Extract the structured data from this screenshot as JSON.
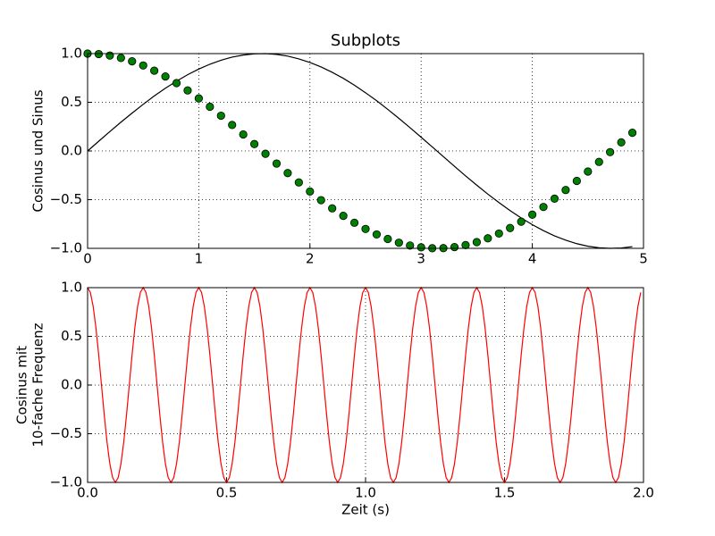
{
  "chart_data": [
    {
      "type": "line",
      "title": "Subplots",
      "ylabel": [
        "Cosinus und Sinus"
      ],
      "x": [
        0,
        0.1,
        0.2,
        0.3,
        0.4,
        0.5,
        0.6,
        0.7,
        0.8,
        0.9,
        1.0,
        1.1,
        1.2,
        1.3,
        1.4,
        1.5,
        1.6,
        1.7,
        1.8,
        1.9,
        2.0,
        2.1,
        2.2,
        2.3,
        2.4,
        2.5,
        2.6,
        2.7,
        2.8,
        2.9,
        3.0,
        3.1,
        3.2,
        3.3,
        3.4,
        3.5,
        3.6,
        3.7,
        3.8,
        3.9,
        4.0,
        4.1,
        4.2,
        4.3,
        4.4,
        4.5,
        4.6,
        4.7,
        4.8,
        4.9
      ],
      "series": [
        {
          "color": "#000000",
          "style": "line",
          "values": [
            0,
            0.0998,
            0.199,
            0.296,
            0.389,
            0.479,
            0.565,
            0.644,
            0.717,
            0.783,
            0.841,
            0.891,
            0.932,
            0.964,
            0.985,
            0.997,
            1.0,
            0.992,
            0.974,
            0.946,
            0.909,
            0.863,
            0.808,
            0.746,
            0.675,
            0.598,
            0.516,
            0.427,
            0.335,
            0.239,
            0.141,
            0.042,
            -0.058,
            -0.158,
            -0.256,
            -0.351,
            -0.443,
            -0.53,
            -0.612,
            -0.688,
            -0.757,
            -0.818,
            -0.872,
            -0.916,
            -0.952,
            -0.978,
            -0.994,
            -1.0,
            -0.996,
            -0.982
          ]
        },
        {
          "color": "#008000",
          "style": "marker",
          "values": [
            1,
            0.995,
            0.98,
            0.955,
            0.921,
            0.878,
            0.825,
            0.765,
            0.697,
            0.622,
            0.54,
            0.454,
            0.362,
            0.267,
            0.17,
            0.071,
            -0.029,
            -0.129,
            -0.227,
            -0.323,
            -0.416,
            -0.505,
            -0.589,
            -0.666,
            -0.737,
            -0.801,
            -0.857,
            -0.904,
            -0.942,
            -0.971,
            -0.99,
            -0.999,
            -0.998,
            -0.987,
            -0.967,
            -0.936,
            -0.897,
            -0.848,
            -0.791,
            -0.726,
            -0.654,
            -0.575,
            -0.49,
            -0.401,
            -0.307,
            -0.211,
            -0.112,
            -0.012,
            0.088,
            0.187
          ]
        }
      ],
      "xlim": [
        0,
        5
      ],
      "xticks": [
        0,
        1,
        2,
        3,
        4,
        5
      ],
      "ylim": [
        -1,
        1
      ],
      "yticks": [
        {
          "value": -1,
          "label": "−1.0"
        },
        {
          "value": -0.5,
          "label": "−0.5"
        },
        {
          "value": 0,
          "label": "0.0"
        },
        {
          "value": 0.5,
          "label": "0.5"
        },
        {
          "value": 1,
          "label": "1.0"
        }
      ],
      "grid": true
    },
    {
      "type": "line",
      "xlabel": "Zeit (s)",
      "ylabel": [
        "Cosinus mit",
        "10-fache Frequenz"
      ],
      "x": [
        0,
        0.01,
        0.02,
        0.03,
        0.04,
        0.05,
        0.06,
        0.07,
        0.08,
        0.09,
        0.1,
        0.11,
        0.12,
        0.13,
        0.14,
        0.15,
        0.16,
        0.17,
        0.18,
        0.19,
        0.2,
        0.21,
        0.22,
        0.23,
        0.24,
        0.25,
        0.26,
        0.27,
        0.28,
        0.29,
        0.3,
        0.31,
        0.32,
        0.33,
        0.34,
        0.35,
        0.36,
        0.37,
        0.38,
        0.39,
        0.4,
        0.41,
        0.42,
        0.43,
        0.44,
        0.45,
        0.46,
        0.47,
        0.48,
        0.49,
        0.5,
        0.51,
        0.52,
        0.53,
        0.54,
        0.55,
        0.56,
        0.57,
        0.58,
        0.59,
        0.6,
        0.61,
        0.62,
        0.63,
        0.64,
        0.65,
        0.66,
        0.67,
        0.68,
        0.69,
        0.7,
        0.71,
        0.72,
        0.73,
        0.74,
        0.75,
        0.76,
        0.77,
        0.78,
        0.79,
        0.8,
        0.81,
        0.82,
        0.83,
        0.84,
        0.85,
        0.86,
        0.87,
        0.88,
        0.89,
        0.9,
        0.91,
        0.92,
        0.93,
        0.94,
        0.95,
        0.96,
        0.97,
        0.98,
        0.99,
        1.0,
        1.01,
        1.02,
        1.03,
        1.04,
        1.05,
        1.06,
        1.07,
        1.08,
        1.09,
        1.1,
        1.11,
        1.12,
        1.13,
        1.14,
        1.15,
        1.16,
        1.17,
        1.18,
        1.19,
        1.2,
        1.21,
        1.22,
        1.23,
        1.24,
        1.25,
        1.26,
        1.27,
        1.28,
        1.29,
        1.3,
        1.31,
        1.32,
        1.33,
        1.34,
        1.35,
        1.36,
        1.37,
        1.38,
        1.39,
        1.4,
        1.41,
        1.42,
        1.43,
        1.44,
        1.45,
        1.46,
        1.47,
        1.48,
        1.49,
        1.5,
        1.51,
        1.52,
        1.53,
        1.54,
        1.55,
        1.56,
        1.57,
        1.58,
        1.59,
        1.6,
        1.61,
        1.62,
        1.63,
        1.64,
        1.65,
        1.66,
        1.67,
        1.68,
        1.69,
        1.7,
        1.71,
        1.72,
        1.73,
        1.74,
        1.75,
        1.76,
        1.77,
        1.78,
        1.79,
        1.8,
        1.81,
        1.82,
        1.83,
        1.84,
        1.85,
        1.86,
        1.87,
        1.88,
        1.89,
        1.9,
        1.91,
        1.92,
        1.93,
        1.94,
        1.95,
        1.96,
        1.97,
        1.98,
        1.99
      ],
      "series": [
        {
          "color": "#ff0000",
          "style": "line",
          "values": [
            1,
            0.951,
            0.809,
            0.588,
            0.309,
            0,
            -0.309,
            -0.588,
            -0.809,
            -0.951,
            -1,
            -0.951,
            -0.809,
            -0.588,
            -0.309,
            0,
            0.309,
            0.588,
            0.809,
            0.951,
            1,
            0.951,
            0.809,
            0.588,
            0.309,
            0,
            -0.309,
            -0.588,
            -0.809,
            -0.951,
            -1,
            -0.951,
            -0.809,
            -0.588,
            -0.309,
            0,
            0.309,
            0.588,
            0.809,
            0.951,
            1,
            0.951,
            0.809,
            0.588,
            0.309,
            0,
            -0.309,
            -0.588,
            -0.809,
            -0.951,
            -1,
            -0.951,
            -0.809,
            -0.588,
            -0.309,
            0,
            0.309,
            0.588,
            0.809,
            0.951,
            1,
            0.951,
            0.809,
            0.588,
            0.309,
            0,
            -0.309,
            -0.588,
            -0.809,
            -0.951,
            -1,
            -0.951,
            -0.809,
            -0.588,
            -0.309,
            0,
            0.309,
            0.588,
            0.809,
            0.951,
            1,
            0.951,
            0.809,
            0.588,
            0.309,
            0,
            -0.309,
            -0.588,
            -0.809,
            -0.951,
            -1,
            -0.951,
            -0.809,
            -0.588,
            -0.309,
            0,
            0.309,
            0.588,
            0.809,
            0.951,
            1,
            0.951,
            0.809,
            0.588,
            0.309,
            0,
            -0.309,
            -0.588,
            -0.809,
            -0.951,
            -1,
            -0.951,
            -0.809,
            -0.588,
            -0.309,
            0,
            0.309,
            0.588,
            0.809,
            0.951,
            1,
            0.951,
            0.809,
            0.588,
            0.309,
            0,
            -0.309,
            -0.588,
            -0.809,
            -0.951,
            -1,
            -0.951,
            -0.809,
            -0.588,
            -0.309,
            0,
            0.309,
            0.588,
            0.809,
            0.951,
            1,
            0.951,
            0.809,
            0.588,
            0.309,
            0,
            -0.309,
            -0.588,
            -0.809,
            -0.951,
            -1,
            -0.951,
            -0.809,
            -0.588,
            -0.309,
            0,
            0.309,
            0.588,
            0.809,
            0.951,
            1,
            0.951,
            0.809,
            0.588,
            0.309,
            0,
            -0.309,
            -0.588,
            -0.809,
            -0.951,
            -1,
            -0.951,
            -0.809,
            -0.588,
            -0.309,
            0,
            0.309,
            0.588,
            0.809,
            0.951,
            1,
            0.951,
            0.809,
            0.588,
            0.309,
            0,
            -0.309,
            -0.588,
            -0.809,
            -0.951,
            -1,
            -0.951,
            -0.809,
            -0.588,
            -0.309,
            0,
            0.309,
            0.588,
            0.809,
            0.951
          ]
        }
      ],
      "xlim": [
        0,
        2
      ],
      "xticks": [
        {
          "value": 0,
          "label": "0.0"
        },
        {
          "value": 0.5,
          "label": "0.5"
        },
        {
          "value": 1,
          "label": "1.0"
        },
        {
          "value": 1.5,
          "label": "1.5"
        },
        {
          "value": 2,
          "label": "2.0"
        }
      ],
      "ylim": [
        -1,
        1
      ],
      "yticks": [
        {
          "value": -1,
          "label": "−1.0"
        },
        {
          "value": -0.5,
          "label": "−0.5"
        },
        {
          "value": 0,
          "label": "0.0"
        },
        {
          "value": 0.5,
          "label": "0.5"
        },
        {
          "value": 1,
          "label": "1.0"
        }
      ],
      "grid": true
    }
  ]
}
